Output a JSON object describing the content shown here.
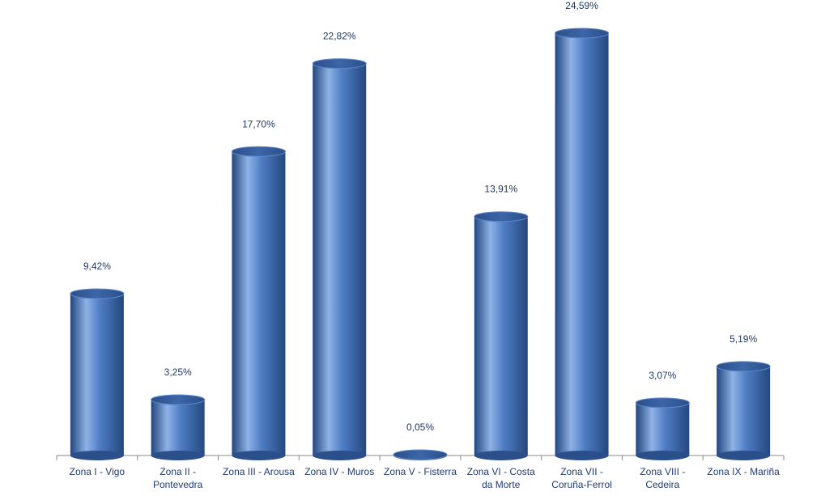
{
  "chart_data": {
    "type": "bar",
    "categories": [
      "Zona I - Vigo",
      "Zona II - Pontevedra",
      "Zona III - Arousa",
      "Zona IV - Muros",
      "Zona V - Fisterra",
      "Zona VI - Costa da Morte",
      "Zona VII - Coruña-Ferrol",
      "Zona VIII - Cedeira",
      "Zona IX - Mariña"
    ],
    "values": [
      9.42,
      3.25,
      17.7,
      22.82,
      0.05,
      13.91,
      24.59,
      3.07,
      5.19
    ],
    "value_labels": [
      "9,42%",
      "3,25%",
      "17,70%",
      "22,82%",
      "0,05%",
      "13,91%",
      "24,59%",
      "3,07%",
      "5,19%"
    ],
    "color": "#4a78c0"
  }
}
